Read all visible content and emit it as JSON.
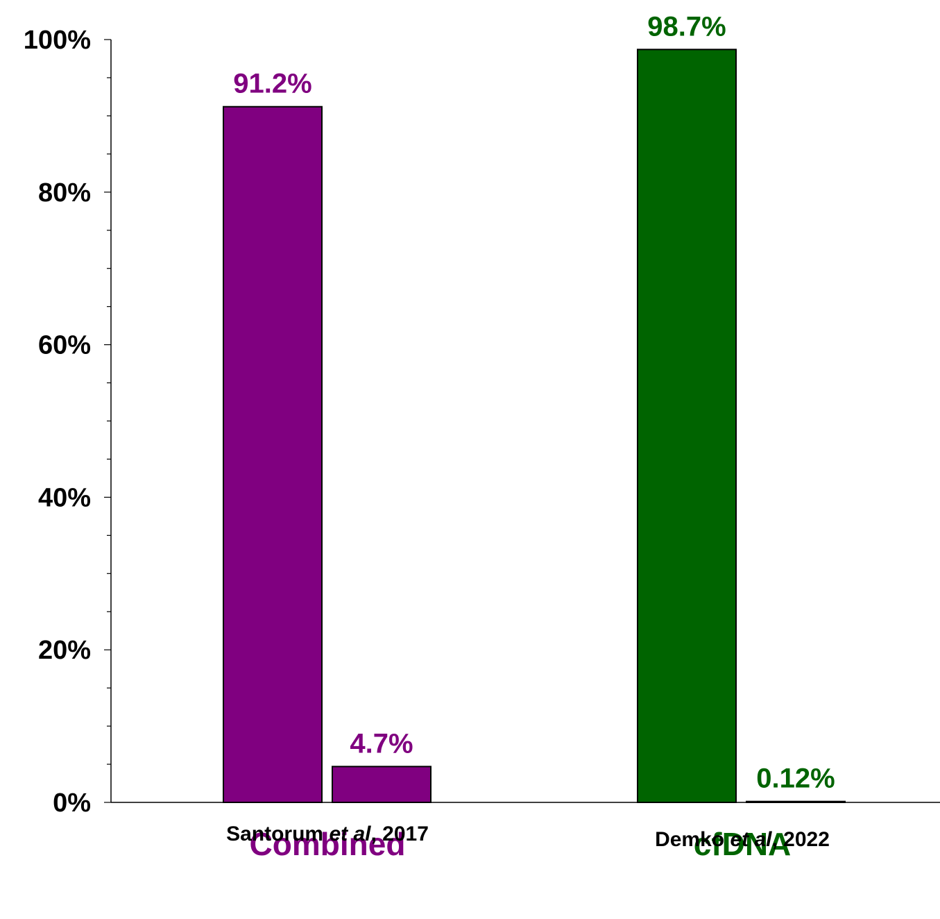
{
  "chart_data": {
    "type": "bar",
    "ylim": [
      0,
      100
    ],
    "y_ticks": [
      "0%",
      "20%",
      "40%",
      "60%",
      "80%",
      "100%"
    ],
    "y_tick_values": [
      0,
      20,
      40,
      60,
      80,
      100
    ],
    "minor_tick_step": 5,
    "grid": false,
    "groups": [
      {
        "label": "Combined",
        "color": "#800080",
        "citation": {
          "author": "Santorum ",
          "etal": "et al",
          "year": ", 2017"
        },
        "bars": [
          {
            "value": 91.2,
            "label": "91.2%"
          },
          {
            "value": 4.7,
            "label": "4.7%"
          }
        ]
      },
      {
        "label": "cfDNA",
        "color": "#006400",
        "citation": {
          "author": "Demko ",
          "etal": "et al",
          "year": ", 2022"
        },
        "bars": [
          {
            "value": 98.7,
            "label": "98.7%"
          },
          {
            "value": 0.12,
            "label": "0.12%"
          }
        ]
      }
    ]
  }
}
